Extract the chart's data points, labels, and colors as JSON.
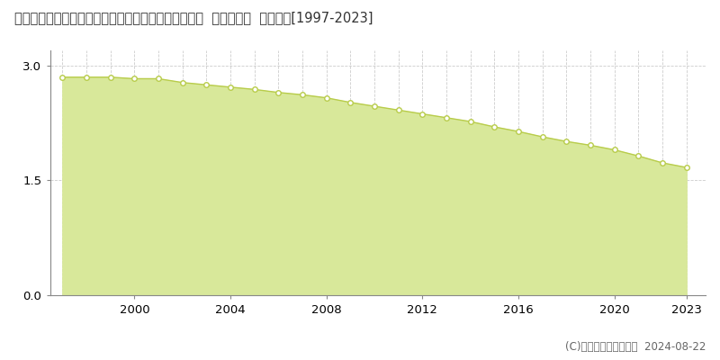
{
  "title": "愛知県北設楽郡東栄町大字振草字古戸磨谷２１番１外  基準地価格  地価推移[1997-2023]",
  "years": [
    1997,
    1998,
    1999,
    2000,
    2001,
    2002,
    2003,
    2004,
    2005,
    2006,
    2007,
    2008,
    2009,
    2010,
    2011,
    2012,
    2013,
    2014,
    2015,
    2016,
    2017,
    2018,
    2019,
    2020,
    2021,
    2022,
    2023
  ],
  "values": [
    2.85,
    2.85,
    2.85,
    2.83,
    2.83,
    2.78,
    2.75,
    2.72,
    2.69,
    2.65,
    2.62,
    2.58,
    2.52,
    2.47,
    2.42,
    2.37,
    2.32,
    2.27,
    2.2,
    2.14,
    2.07,
    2.01,
    1.96,
    1.9,
    1.82,
    1.73,
    1.67
  ],
  "line_color": "#b8cc4a",
  "fill_color": "#d8e89a",
  "marker_face": "#ffffff",
  "marker_edge": "#b8cc4a",
  "background_color": "#ffffff",
  "grid_color": "#cccccc",
  "yticks": [
    0,
    1.5,
    3
  ],
  "xticks": [
    2000,
    2004,
    2008,
    2012,
    2016,
    2020,
    2023
  ],
  "ylim": [
    0,
    3.2
  ],
  "xlim": [
    1996.5,
    2023.8
  ],
  "copyright_text": "(C)土地価格ドットコム  2024-08-22",
  "title_fontsize": 10.5,
  "legend_fontsize": 9.5,
  "tick_fontsize": 9.5,
  "copyright_fontsize": 8.5
}
